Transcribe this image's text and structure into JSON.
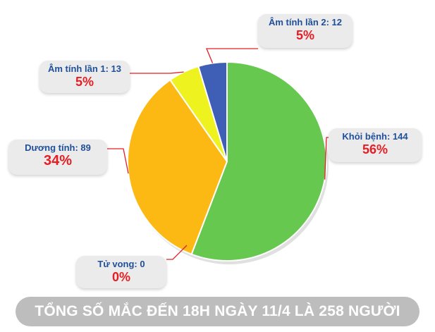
{
  "chart_data": {
    "type": "pie",
    "title": "TỔNG SỐ MẮC ĐẾN 18H NGÀY 11/4 LÀ 258 NGƯỜI",
    "slices": [
      {
        "name": "Khỏi bệnh",
        "value": 144,
        "label": "Khỏi bệnh: 144",
        "percent": "56%",
        "color": "#66c84e"
      },
      {
        "name": "Dương tính",
        "value": 89,
        "label": "Dương tính: 89",
        "percent": "34%",
        "color": "#fdb913"
      },
      {
        "name": "Âm tính lần 1",
        "value": 13,
        "label": "Âm tính lần 1: 13",
        "percent": "5%",
        "color": "#eef21f"
      },
      {
        "name": "Âm tính lần 2",
        "value": 12,
        "label": "Âm tính lần 2: 12",
        "percent": "5%",
        "color": "#3f5eb5"
      },
      {
        "name": "Tử vong",
        "value": 0,
        "label": "Tử vong: 0",
        "percent": "0%",
        "color": "#e31e24"
      }
    ],
    "leader_color": "#e31e24"
  }
}
